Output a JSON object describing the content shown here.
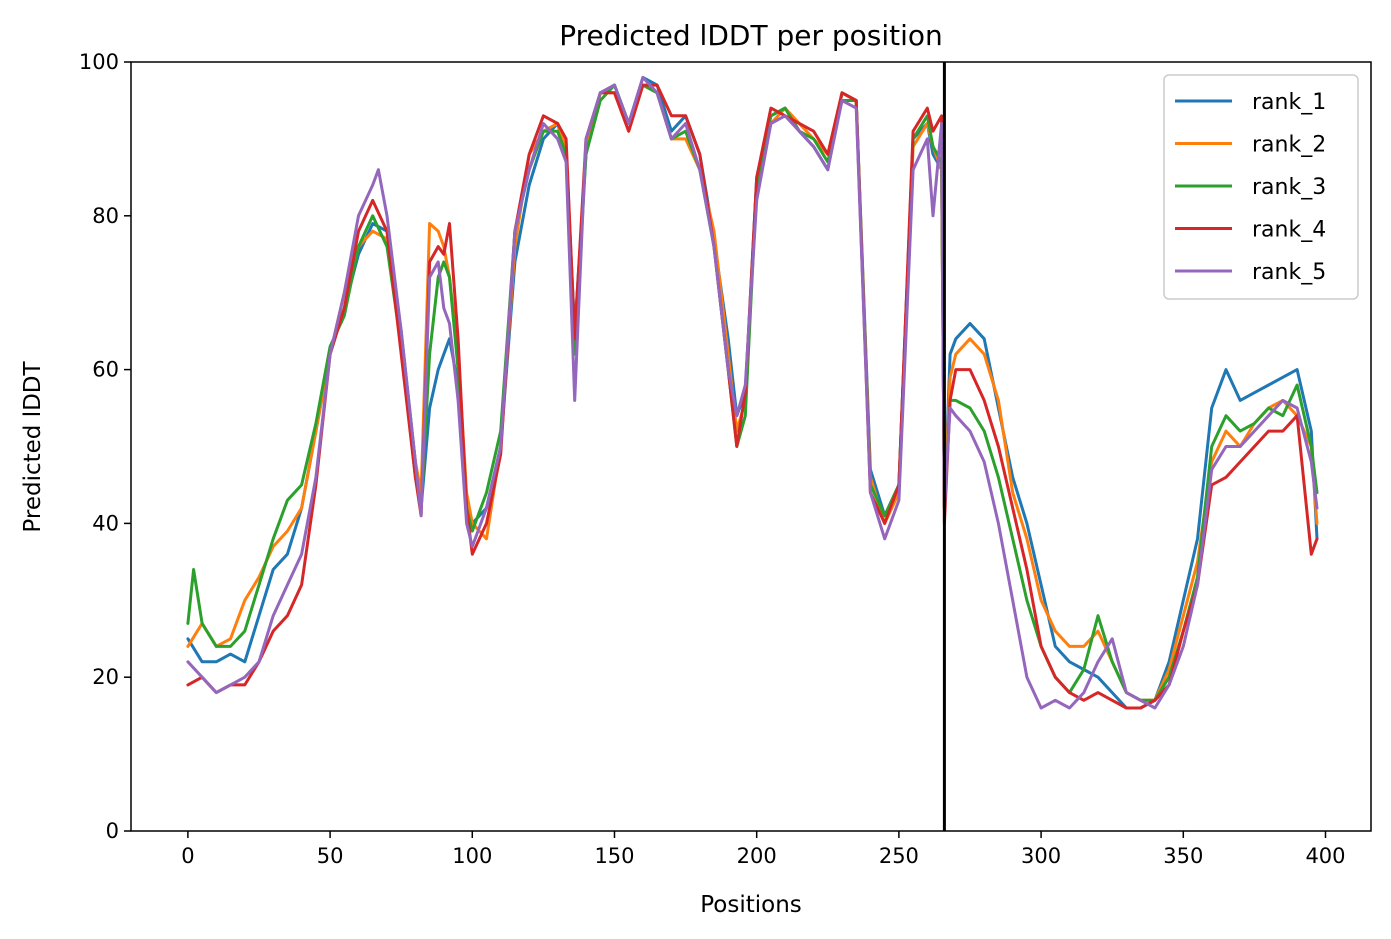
{
  "chart_data": {
    "type": "line",
    "title": "Predicted lDDT per position",
    "xlabel": "Positions",
    "ylabel": "Predicted lDDT",
    "xlim": [
      -20,
      416
    ],
    "ylim": [
      0,
      100
    ],
    "xticks": [
      0,
      50,
      100,
      150,
      200,
      250,
      300,
      350,
      400
    ],
    "yticks": [
      0,
      20,
      40,
      60,
      80,
      100
    ],
    "grid": false,
    "legend_position": "top-right",
    "vline_x": 266,
    "series": [
      {
        "name": "rank_1",
        "color": "#1f77b4",
        "x": [
          0,
          5,
          10,
          15,
          20,
          25,
          30,
          35,
          40,
          45,
          50,
          55,
          60,
          65,
          70,
          75,
          80,
          82,
          85,
          88,
          90,
          92,
          95,
          98,
          100,
          105,
          110,
          115,
          120,
          125,
          130,
          133,
          136,
          140,
          145,
          150,
          155,
          160,
          165,
          170,
          175,
          180,
          185,
          190,
          193,
          196,
          200,
          205,
          210,
          215,
          220,
          225,
          230,
          235,
          240,
          245,
          250,
          255,
          260,
          262,
          265,
          266,
          268,
          270,
          275,
          280,
          285,
          290,
          295,
          300,
          305,
          310,
          315,
          320,
          325,
          330,
          335,
          340,
          345,
          350,
          355,
          360,
          365,
          370,
          375,
          380,
          385,
          390,
          395,
          397
        ],
        "y": [
          25,
          22,
          22,
          23,
          22,
          28,
          34,
          36,
          42,
          52,
          62,
          68,
          75,
          79,
          78,
          65,
          48,
          42,
          55,
          60,
          62,
          64,
          58,
          42,
          40,
          42,
          50,
          74,
          84,
          90,
          92,
          88,
          65,
          88,
          96,
          97,
          92,
          98,
          97,
          91,
          93,
          88,
          77,
          64,
          54,
          57,
          85,
          93,
          94,
          91,
          89,
          86,
          96,
          95,
          47,
          41,
          45,
          90,
          92,
          88,
          86,
          42,
          62,
          64,
          66,
          64,
          55,
          46,
          40,
          32,
          24,
          22,
          21,
          20,
          18,
          16,
          16,
          17,
          22,
          30,
          38,
          55,
          60,
          56,
          57,
          58,
          59,
          60,
          52,
          38
        ]
      },
      {
        "name": "rank_2",
        "color": "#ff7f0e",
        "x": [
          0,
          5,
          10,
          15,
          20,
          25,
          30,
          35,
          40,
          45,
          50,
          55,
          60,
          65,
          70,
          75,
          80,
          82,
          85,
          88,
          90,
          92,
          95,
          98,
          100,
          105,
          110,
          115,
          120,
          125,
          130,
          133,
          136,
          140,
          145,
          150,
          155,
          160,
          165,
          170,
          175,
          180,
          185,
          190,
          193,
          196,
          200,
          205,
          210,
          215,
          220,
          225,
          230,
          235,
          240,
          245,
          250,
          255,
          260,
          262,
          265,
          266,
          268,
          270,
          275,
          280,
          285,
          290,
          295,
          300,
          305,
          310,
          315,
          320,
          325,
          330,
          335,
          340,
          345,
          350,
          355,
          360,
          365,
          370,
          375,
          380,
          385,
          390,
          395,
          397
        ],
        "y": [
          24,
          27,
          24,
          25,
          30,
          33,
          37,
          39,
          42,
          52,
          62,
          70,
          76,
          78,
          77,
          64,
          48,
          44,
          79,
          78,
          76,
          72,
          62,
          44,
          40,
          38,
          50,
          76,
          88,
          91,
          92,
          89,
          64,
          89,
          96,
          96,
          91,
          97,
          96,
          90,
          90,
          86,
          78,
          62,
          52,
          56,
          84,
          92,
          94,
          92,
          90,
          88,
          96,
          95,
          46,
          40,
          44,
          89,
          92,
          89,
          86,
          42,
          59,
          62,
          64,
          62,
          56,
          44,
          38,
          30,
          26,
          24,
          24,
          26,
          22,
          18,
          17,
          17,
          21,
          28,
          35,
          48,
          52,
          50,
          53,
          55,
          56,
          54,
          50,
          40
        ]
      },
      {
        "name": "rank_3",
        "color": "#2ca02c",
        "x": [
          0,
          2,
          5,
          10,
          15,
          20,
          25,
          30,
          35,
          40,
          45,
          50,
          55,
          60,
          65,
          70,
          75,
          80,
          82,
          85,
          88,
          90,
          92,
          95,
          98,
          100,
          105,
          110,
          115,
          120,
          125,
          130,
          133,
          136,
          140,
          145,
          150,
          155,
          160,
          165,
          170,
          175,
          180,
          185,
          190,
          193,
          196,
          200,
          205,
          210,
          215,
          220,
          225,
          230,
          235,
          240,
          245,
          250,
          255,
          260,
          262,
          265,
          266,
          268,
          270,
          275,
          280,
          285,
          290,
          295,
          300,
          305,
          310,
          315,
          320,
          325,
          330,
          335,
          340,
          345,
          350,
          355,
          360,
          365,
          370,
          375,
          380,
          385,
          390,
          395,
          397
        ],
        "y": [
          27,
          34,
          27,
          24,
          24,
          26,
          32,
          38,
          43,
          45,
          53,
          63,
          67,
          76,
          80,
          76,
          63,
          46,
          42,
          62,
          72,
          74,
          72,
          60,
          42,
          39,
          44,
          52,
          78,
          86,
          91,
          91,
          88,
          62,
          88,
          95,
          97,
          92,
          97,
          96,
          90,
          91,
          86,
          76,
          60,
          50,
          54,
          84,
          93,
          94,
          91,
          90,
          87,
          95,
          95,
          45,
          41,
          45,
          90,
          93,
          89,
          87,
          42,
          56,
          56,
          55,
          52,
          46,
          38,
          30,
          24,
          20,
          18,
          21,
          28,
          22,
          18,
          17,
          17,
          20,
          26,
          33,
          50,
          54,
          52,
          53,
          55,
          54,
          58,
          50,
          44
        ]
      },
      {
        "name": "rank_4",
        "color": "#d62728",
        "x": [
          0,
          5,
          10,
          15,
          20,
          25,
          30,
          35,
          40,
          45,
          50,
          55,
          60,
          65,
          70,
          75,
          80,
          82,
          85,
          88,
          90,
          92,
          95,
          98,
          100,
          105,
          110,
          115,
          120,
          125,
          130,
          133,
          136,
          140,
          145,
          150,
          155,
          160,
          165,
          170,
          175,
          180,
          185,
          190,
          193,
          196,
          200,
          205,
          210,
          215,
          220,
          225,
          230,
          235,
          240,
          245,
          250,
          255,
          260,
          262,
          265,
          266,
          268,
          270,
          275,
          280,
          285,
          290,
          295,
          300,
          305,
          310,
          315,
          320,
          325,
          330,
          335,
          340,
          345,
          350,
          355,
          360,
          365,
          370,
          375,
          380,
          385,
          390,
          395,
          397
        ],
        "y": [
          19,
          20,
          18,
          19,
          19,
          22,
          26,
          28,
          32,
          45,
          62,
          68,
          78,
          82,
          78,
          62,
          46,
          41,
          74,
          76,
          75,
          79,
          64,
          42,
          36,
          40,
          49,
          78,
          88,
          93,
          92,
          90,
          64,
          90,
          96,
          96,
          91,
          97,
          97,
          93,
          93,
          88,
          76,
          60,
          50,
          57,
          85,
          94,
          93,
          92,
          91,
          88,
          96,
          95,
          44,
          40,
          45,
          91,
          94,
          91,
          93,
          40,
          56,
          60,
          60,
          56,
          50,
          42,
          34,
          24,
          20,
          18,
          17,
          18,
          17,
          16,
          16,
          17,
          19,
          26,
          32,
          45,
          46,
          48,
          50,
          52,
          52,
          54,
          36,
          38
        ]
      },
      {
        "name": "rank_5",
        "color": "#9467bd",
        "x": [
          0,
          5,
          10,
          15,
          20,
          25,
          30,
          35,
          40,
          45,
          50,
          55,
          60,
          65,
          67,
          70,
          75,
          80,
          82,
          85,
          88,
          90,
          92,
          95,
          98,
          100,
          105,
          110,
          115,
          120,
          125,
          130,
          133,
          136,
          140,
          145,
          150,
          155,
          160,
          165,
          170,
          175,
          180,
          185,
          190,
          193,
          196,
          200,
          205,
          210,
          215,
          220,
          225,
          230,
          235,
          240,
          245,
          250,
          255,
          260,
          262,
          265,
          266,
          268,
          270,
          275,
          280,
          285,
          290,
          295,
          300,
          305,
          310,
          315,
          320,
          325,
          330,
          335,
          340,
          345,
          350,
          355,
          360,
          365,
          370,
          375,
          380,
          385,
          390,
          395,
          397
        ],
        "y": [
          22,
          20,
          18,
          19,
          20,
          22,
          28,
          32,
          36,
          46,
          62,
          70,
          80,
          84,
          86,
          80,
          65,
          48,
          41,
          72,
          74,
          68,
          66,
          56,
          40,
          37,
          42,
          50,
          78,
          86,
          92,
          90,
          87,
          56,
          90,
          96,
          97,
          92,
          98,
          96,
          90,
          92,
          86,
          76,
          60,
          54,
          58,
          82,
          92,
          93,
          91,
          89,
          86,
          95,
          94,
          44,
          38,
          43,
          86,
          90,
          80,
          92,
          42,
          55,
          54,
          52,
          48,
          40,
          30,
          20,
          16,
          17,
          16,
          18,
          22,
          25,
          18,
          17,
          16,
          19,
          24,
          32,
          47,
          50,
          50,
          52,
          54,
          56,
          55,
          48,
          42
        ]
      }
    ]
  }
}
